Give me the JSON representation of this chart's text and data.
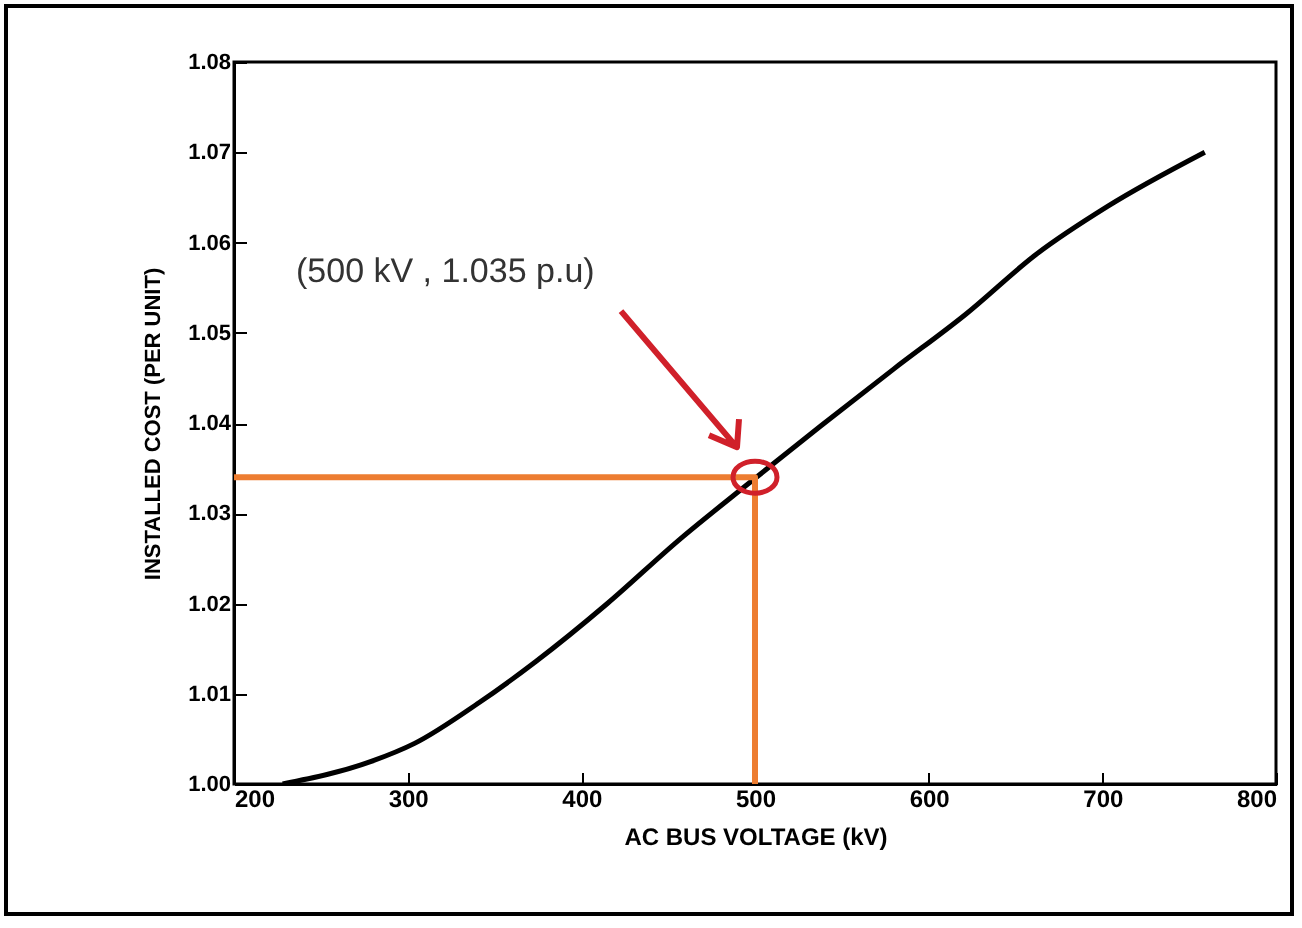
{
  "chart_data": {
    "type": "line",
    "xlabel": "AC BUS VOLTAGE (kV)",
    "ylabel": "INSTALLED COST (PER UNIT)",
    "xlim": [
      200,
      800
    ],
    "ylim": [
      1.0,
      1.08
    ],
    "xticks": [
      200,
      300,
      400,
      500,
      600,
      700,
      800
    ],
    "yticks": [
      {
        "value": 1.0,
        "label": "1.00"
      },
      {
        "value": 1.01,
        "label": "1.01"
      },
      {
        "value": 1.02,
        "label": "1.02"
      },
      {
        "value": 1.03,
        "label": "1.03"
      },
      {
        "value": 1.04,
        "label": "1.04"
      },
      {
        "value": 1.05,
        "label": "1.05"
      },
      {
        "value": 1.06,
        "label": "1.06"
      },
      {
        "value": 1.07,
        "label": "1.07"
      },
      {
        "value": 1.08,
        "label": "1.08"
      }
    ],
    "grid": false,
    "line_style": "solid",
    "marker": "none",
    "series": [
      {
        "color": "#000000",
        "x": [
          228,
          279,
          304,
          341,
          374,
          415,
          456,
          497,
          538,
          580,
          621,
          662,
          703,
          759
        ],
        "values": [
          1.0,
          1.0025,
          1.0045,
          1.009,
          1.0136,
          1.02,
          1.027,
          1.0334,
          1.0397,
          1.046,
          1.052,
          1.0587,
          1.064,
          1.07
        ]
      },
      {
        "color": "#ed7d31",
        "x": [
          200,
          500,
          500
        ],
        "values": [
          1.034,
          1.034,
          1.0
        ]
      }
    ],
    "annotations": [
      "(500 kV , 1.035 p.u)"
    ]
  }
}
